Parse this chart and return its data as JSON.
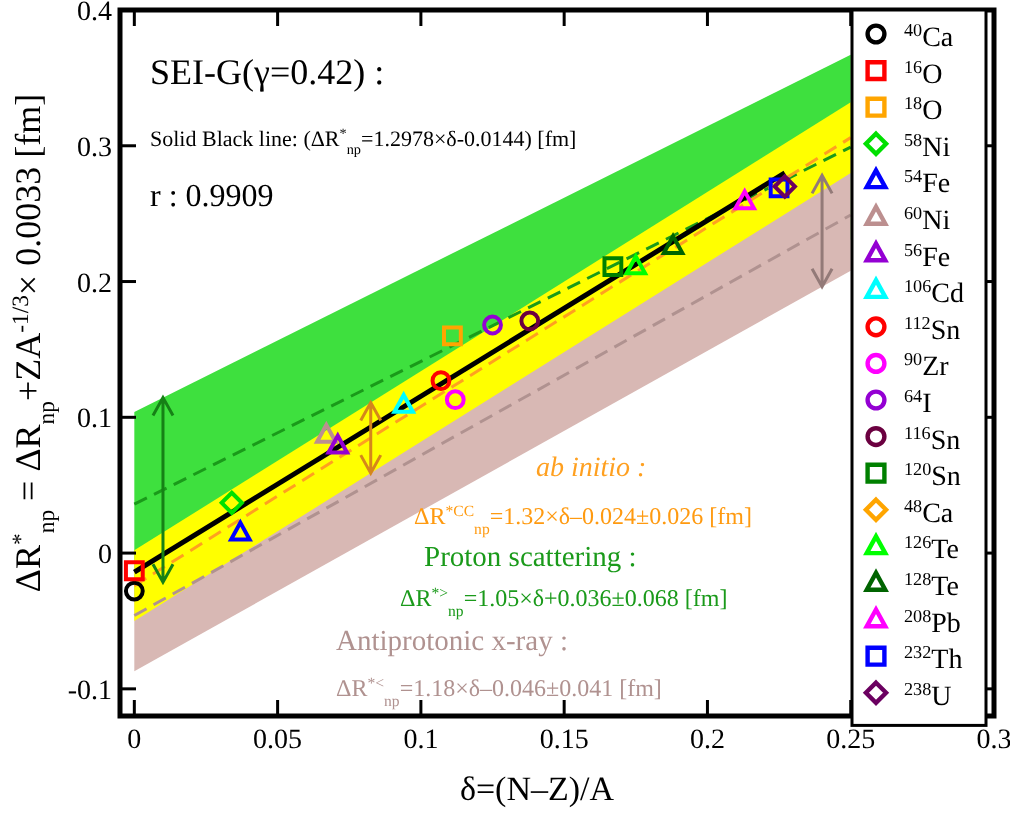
{
  "chart_data": {
    "type": "scatter",
    "xlabel": "δ=(N–Z)/A",
    "ylabel": "ΔR$^{*}$$_{np}$ = ΔR$_{np}$+ZA$^{-1/3}$× 0.0033 [fm]",
    "xlim": [
      -0.005,
      0.3
    ],
    "ylim": [
      -0.12,
      0.4
    ],
    "xticks": [
      0,
      0.05,
      0.1,
      0.15,
      0.2,
      0.25,
      0.3
    ],
    "yticks": [
      -0.1,
      0,
      0.1,
      0.2,
      0.3,
      0.4
    ],
    "grid": false,
    "legend": "right",
    "annotations": [
      "SEI-G(γ=0.42) :",
      "Solid Black line: (ΔR$^{*}$$_{np}$=1.2978×δ-0.0144)  [fm]",
      "r : 0.9909",
      "ab initio :",
      "ΔR$^{*CC}$$_{np}$=1.32×δ–0.024±0.026 [fm]",
      "Proton scattering :",
      "ΔR$^{*>}$$_{np}$=1.05×δ+0.036±0.068  [fm]",
      "Antiprotonic x-ray :",
      "ΔR$^{*<}$$_{np}$=1.18×δ–0.046±0.041 [fm]"
    ],
    "series": [
      {
        "type": "line",
        "color": "#1a9a1a",
        "line_style": "dashed",
        "x": [
          0,
          0.25
        ],
        "values": [
          0.036,
          0.299
        ],
        "lower": [
          -0.032,
          0.231
        ],
        "upper": [
          0.104,
          0.367
        ]
      },
      {
        "type": "line",
        "color": "#b09290",
        "line_style": "dashed",
        "x": [
          0,
          0.25
        ],
        "values": [
          -0.046,
          0.249
        ],
        "lower": [
          -0.087,
          0.208
        ],
        "upper": [
          -0.005,
          0.29
        ]
      },
      {
        "type": "line",
        "color": "#ffa020",
        "line_style": "dashed",
        "x": [
          0,
          0.25
        ],
        "values": [
          -0.024,
          0.306
        ],
        "lower": [
          -0.05,
          0.28
        ],
        "upper": [
          0.002,
          0.332
        ]
      },
      {
        "type": "line",
        "color": "#000000",
        "line_style": "solid",
        "x": [
          0,
          0.227
        ],
        "values": [
          -0.014,
          0.28
        ]
      },
      {
        "name": "$^{40}$Ca",
        "color": "#000000",
        "marker": "circle",
        "x": [
          0
        ],
        "values": [
          -0.028
        ]
      },
      {
        "name": "$^{16}$O",
        "color": "#ff0000",
        "marker": "square",
        "x": [
          0
        ],
        "values": [
          -0.013
        ]
      },
      {
        "name": "$^{18}$O",
        "color": "#ffa500",
        "marker": "square",
        "x": [
          0.111
        ],
        "values": [
          0.16
        ]
      },
      {
        "name": "$^{58}$Ni",
        "color": "#00e000",
        "marker": "diamond",
        "x": [
          0.034
        ],
        "values": [
          0.037
        ]
      },
      {
        "name": "$^{54}$Fe",
        "color": "#0000ff",
        "marker": "triangle",
        "x": [
          0.037
        ],
        "values": [
          0.015
        ]
      },
      {
        "name": "$^{60}$Ni",
        "color": "#bc8f8f",
        "marker": "triangle",
        "x": [
          0.067
        ],
        "values": [
          0.087
        ]
      },
      {
        "name": "$^{56}$Fe",
        "color": "#9400d3",
        "marker": "triangle",
        "x": [
          0.071
        ],
        "values": [
          0.079
        ]
      },
      {
        "name": "$^{106}$Cd",
        "color": "#00ffff",
        "marker": "triangle",
        "x": [
          0.094
        ],
        "values": [
          0.109
        ]
      },
      {
        "name": "$^{112}$Sn",
        "color": "#ff0000",
        "marker": "circle",
        "x": [
          0.107
        ],
        "values": [
          0.127
        ]
      },
      {
        "name": "$^{90}$Zr",
        "color": "#ff00ff",
        "marker": "circle",
        "x": [
          0.112
        ],
        "values": [
          0.113
        ]
      },
      {
        "name": "$^{64}$I",
        "color": "#9400d3",
        "marker": "circle",
        "x": [
          0.125
        ],
        "values": [
          0.168
        ]
      },
      {
        "name": "$^{116}$Sn",
        "color": "#6b0040",
        "marker": "circle",
        "x": [
          0.138
        ],
        "values": [
          0.171
        ]
      },
      {
        "name": "$^{120}$Sn",
        "color": "#008000",
        "marker": "square",
        "x": [
          0.167
        ],
        "values": [
          0.211
        ]
      },
      {
        "name": "$^{48}$Ca",
        "color": "#ffa500",
        "marker": "diamond",
        "values": [
          null
        ]
      },
      {
        "name": "$^{126}$Te",
        "color": "#00ff00",
        "marker": "triangle",
        "x": [
          0.175
        ],
        "values": [
          0.211
        ]
      },
      {
        "name": "$^{128}$Te",
        "color": "#006400",
        "marker": "triangle",
        "x": [
          0.188
        ],
        "values": [
          0.226
        ]
      },
      {
        "name": "$^{208}$Pb",
        "color": "#ff00ff",
        "marker": "triangle",
        "x": [
          0.213
        ],
        "values": [
          0.259
        ]
      },
      {
        "name": "$^{232}$Th",
        "color": "#0000ff",
        "marker": "square",
        "x": [
          0.225
        ],
        "values": [
          0.269
        ]
      },
      {
        "name": "$^{238}$U",
        "color": "#6b0060",
        "marker": "diamond",
        "x": [
          0.227
        ],
        "values": [
          0.27
        ]
      }
    ]
  }
}
